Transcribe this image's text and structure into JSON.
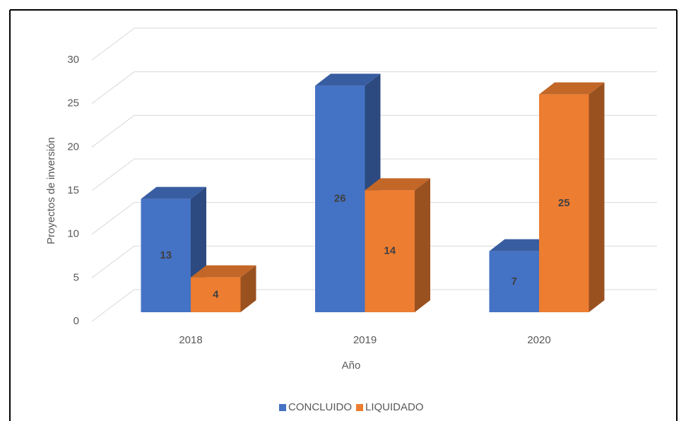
{
  "chart_data": {
    "type": "bar3d",
    "categories": [
      "2018",
      "2019",
      "2020"
    ],
    "series": [
      {
        "name": "CONCLUIDO",
        "color": "#4472c4",
        "values": [
          13,
          26,
          7
        ]
      },
      {
        "name": "LIQUIDADO",
        "color": "#ed7d31",
        "values": [
          4,
          14,
          25
        ]
      }
    ],
    "xlabel": "Año",
    "ylabel": "Proyectos de inversión",
    "ylim": [
      0,
      30
    ],
    "yticks": [
      0,
      5,
      10,
      15,
      20,
      25,
      30
    ],
    "grid": true,
    "legend": "bottom",
    "data_labels": true
  }
}
